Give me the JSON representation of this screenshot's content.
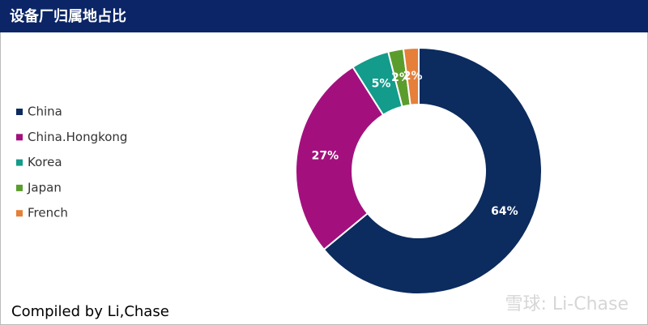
{
  "chart_data": {
    "type": "donut",
    "title": "设备厂归属地占比",
    "categories": [
      "China",
      "China.Hongkong",
      "Korea",
      "Japan",
      "French"
    ],
    "values": [
      64,
      27,
      5,
      2,
      2
    ],
    "value_labels": [
      "64%",
      "27%",
      "5%",
      "2%",
      "2%"
    ],
    "colors": [
      "#0c2b5e",
      "#a3107e",
      "#139b8b",
      "#5b9d2c",
      "#e67f3a"
    ],
    "legend": "left",
    "footer": "Compiled by Li,Chase",
    "watermark": "雪球: Li-Chase"
  }
}
